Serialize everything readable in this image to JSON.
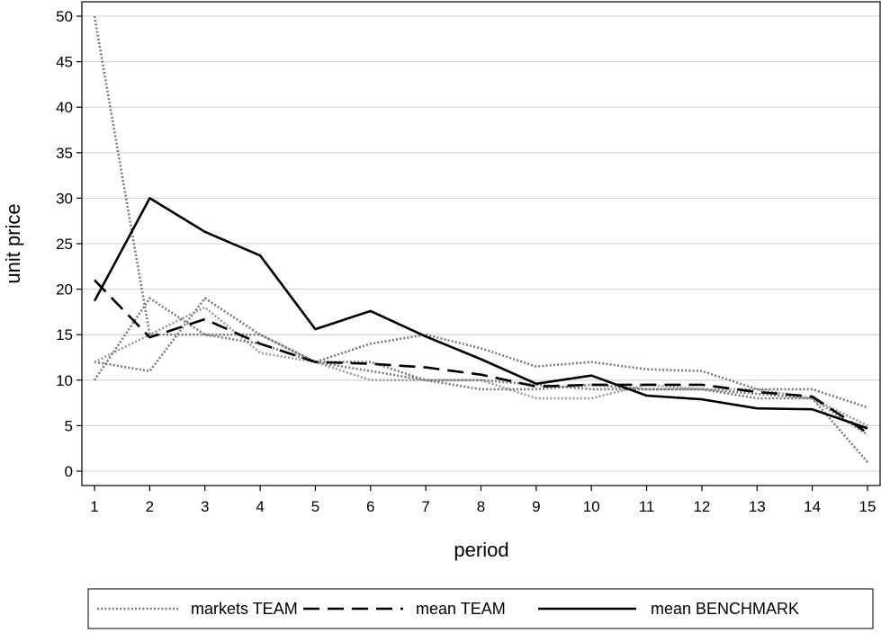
{
  "chart_data": {
    "type": "line",
    "xlabel": "period",
    "ylabel": "unit price",
    "xlim": [
      1,
      15
    ],
    "ylim": [
      0,
      50
    ],
    "x": [
      1,
      2,
      3,
      4,
      5,
      6,
      7,
      8,
      9,
      10,
      11,
      12,
      13,
      14,
      15
    ],
    "x_ticks": [
      "1",
      "2",
      "3",
      "4",
      "5",
      "6",
      "7",
      "8",
      "9",
      "10",
      "11",
      "12",
      "13",
      "14",
      "15"
    ],
    "y_ticks": [
      "0",
      "5",
      "10",
      "15",
      "20",
      "25",
      "30",
      "35",
      "40",
      "45",
      "50"
    ],
    "grid": "horizontal",
    "legend_position": "bottom",
    "series": [
      {
        "name": "markets TEAM",
        "style": "dotted",
        "color": "#7a7a7a",
        "values": [
          50,
          15,
          15,
          15,
          12,
          11,
          10,
          10,
          9.5,
          9,
          9,
          9,
          8.5,
          8,
          1
        ]
      },
      {
        "name": "",
        "style": "dotted",
        "color": "#7a7a7a",
        "values": [
          12,
          11,
          19,
          15,
          12,
          14,
          15,
          13.5,
          11.5,
          12,
          11.2,
          11,
          9,
          9,
          7
        ]
      },
      {
        "name": "",
        "style": "dotted",
        "color": "#999999",
        "values": [
          12,
          15,
          18,
          13,
          12,
          10,
          10,
          10,
          8,
          8,
          9.5,
          9,
          9,
          8,
          5
        ]
      },
      {
        "name": "",
        "style": "dotted",
        "color": "#7a7a7a",
        "values": [
          10,
          19,
          15,
          14,
          12,
          12,
          10,
          9,
          9,
          9.5,
          9,
          9,
          8,
          8,
          4
        ]
      },
      {
        "name": "mean TEAM",
        "style": "dashed",
        "color": "#000000",
        "values": [
          21,
          14.7,
          16.7,
          14,
          12,
          11.8,
          11.4,
          10.6,
          9.3,
          9.5,
          9.5,
          9.5,
          8.7,
          8.2,
          4.2
        ]
      },
      {
        "name": "mean BENCHMARK",
        "style": "solid",
        "color": "#000000",
        "values": [
          18.7,
          30,
          26.3,
          23.7,
          15.6,
          17.6,
          14.8,
          12.3,
          9.6,
          10.5,
          8.3,
          7.9,
          6.9,
          6.8,
          4.7
        ]
      }
    ]
  }
}
